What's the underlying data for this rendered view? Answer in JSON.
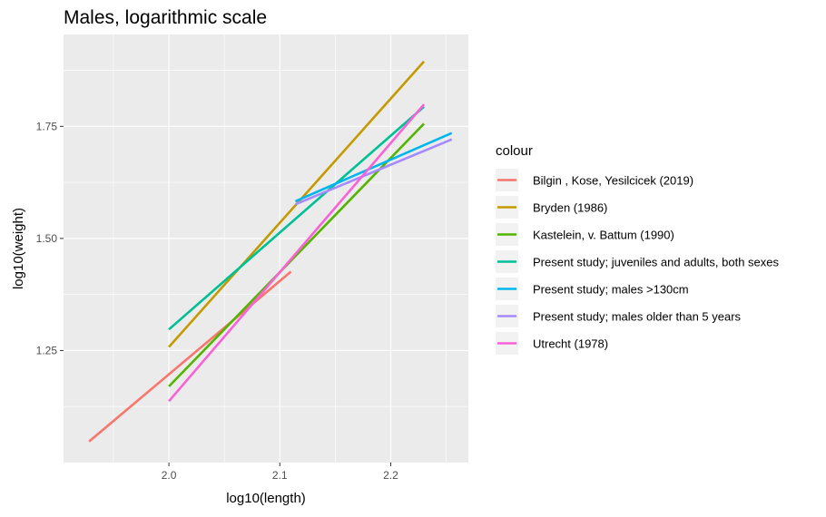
{
  "chart_data": {
    "type": "line",
    "title": "Males, logarithmic scale",
    "xlabel": "log10(length)",
    "ylabel": "log10(weight)",
    "xlim": [
      1.905,
      2.27
    ],
    "ylim": [
      1.0,
      1.955
    ],
    "x_ticks": [
      2.0,
      2.1,
      2.2
    ],
    "x_tick_labels": [
      "2.0",
      "2.1",
      "2.2"
    ],
    "y_ticks": [
      1.25,
      1.5,
      1.75
    ],
    "y_tick_labels": [
      "1.25",
      "1.50",
      "1.75"
    ],
    "grid": true,
    "legend_title": "colour",
    "legend_position": "right",
    "series": [
      {
        "name": "Bilgin , Kose, Yesilcicek (2019)",
        "color": "#F8766D",
        "x": [
          1.928,
          2.11
        ],
        "y": [
          1.047,
          1.426
        ]
      },
      {
        "name": "Bryden (1986)",
        "color": "#C49A00",
        "x": [
          2.0,
          2.23
        ],
        "y": [
          1.258,
          1.895
        ]
      },
      {
        "name": "Kastelein, v. Battum (1990)",
        "color": "#53B400",
        "x": [
          2.0,
          2.23
        ],
        "y": [
          1.17,
          1.756
        ]
      },
      {
        "name": "Present study; juveniles and adults, both sexes",
        "color": "#00C094",
        "x": [
          2.0,
          2.23
        ],
        "y": [
          1.297,
          1.794
        ]
      },
      {
        "name": "Present study; males >130cm",
        "color": "#00B6EB",
        "x": [
          2.114,
          2.255
        ],
        "y": [
          1.583,
          1.735
        ]
      },
      {
        "name": "Present study; males older than 5 years",
        "color": "#A58AFF",
        "x": [
          2.114,
          2.255
        ],
        "y": [
          1.576,
          1.721
        ]
      },
      {
        "name": "Utrecht (1978)",
        "color": "#FB61D7",
        "x": [
          2.0,
          2.23
        ],
        "y": [
          1.137,
          1.799
        ]
      }
    ]
  }
}
